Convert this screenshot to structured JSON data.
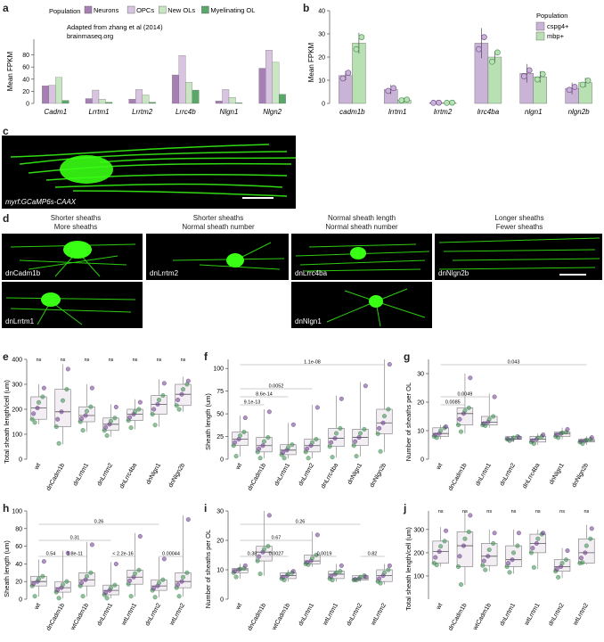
{
  "panels": {
    "a": {
      "letter": "a",
      "legend_title": "Population",
      "legend": [
        "Neurons",
        "OPCs",
        "New OLs",
        "Myelinating OL"
      ],
      "note_line1": "Adapted from zhang et al (2014)",
      "note_line2": "brainmaseq.org",
      "ylabel": "Mean FPKM"
    },
    "b": {
      "letter": "b",
      "legend_title": "Population",
      "legend": [
        "cspg4+",
        "mbp+"
      ],
      "ylabel": "Mean FPKM"
    },
    "c": {
      "letter": "c",
      "label": "myrf:GCaMP6s-CAAX"
    },
    "d": {
      "letter": "d",
      "headers": [
        [
          "Shorter sheaths",
          "More sheaths"
        ],
        [
          "Shorter sheaths",
          "Normal sheath number"
        ],
        [
          "Normal sheath length",
          "Normal sheath number"
        ],
        [
          "Longer sheaths",
          "Fewer sheaths"
        ]
      ],
      "labels": [
        "dnCadm1b",
        "dnLrrtm2",
        "dnLrrc4ba",
        "dnNlgn2b",
        "dnLrrtm1",
        "dnNlgn1"
      ]
    },
    "e": {
      "letter": "e",
      "ylabel": "Total sheath length/cell (um)"
    },
    "f": {
      "letter": "f",
      "ylabel": "Sheath length (um)"
    },
    "g": {
      "letter": "g",
      "ylabel": "Number of sheaths per OL"
    },
    "h": {
      "letter": "h",
      "ylabel": "Sheath length (um)"
    },
    "i": {
      "letter": "i",
      "ylabel": "Number of sheaths per OL"
    },
    "j": {
      "letter": "j",
      "ylabel": "Total sheath length/cell (um)"
    }
  },
  "colors": {
    "neurons": "#a67fb5",
    "opcs": "#d8c3e0",
    "newols": "#c9e6c3",
    "myelin": "#5aa76a",
    "cspg4": "#c9b3d6",
    "mbp": "#b9e0b3",
    "purple": "#6a3d8a",
    "green": "#3d8a4f",
    "box": "#f3eef3",
    "scope_green": "#39ff14"
  },
  "chart_data": [
    {
      "id": "a",
      "type": "bar",
      "categories": [
        "Cadm1",
        "Lrrtm1",
        "Lrrtm2",
        "Lrrc4b",
        "Nlgn1",
        "Nlgn2"
      ],
      "series": [
        {
          "name": "Neurons",
          "values": [
            29,
            8,
            7,
            47,
            4,
            58
          ]
        },
        {
          "name": "OPCs",
          "values": [
            30,
            22,
            23,
            79,
            23,
            88
          ]
        },
        {
          "name": "New OLs",
          "values": [
            43,
            7,
            14,
            35,
            10,
            68
          ]
        },
        {
          "name": "Myelinating OL",
          "values": [
            5,
            2,
            2,
            22,
            1,
            15
          ]
        }
      ],
      "ylabel": "Mean FPKM",
      "ylim": [
        0,
        100
      ],
      "yticks": [
        0,
        20,
        40,
        60,
        80
      ]
    },
    {
      "id": "b",
      "type": "bar",
      "categories": [
        "cadm1b",
        "lrrtm1",
        "lrrtm2",
        "lrrc4ba",
        "nlgn1",
        "nlgn2b"
      ],
      "series": [
        {
          "name": "cspg4+",
          "values": [
            12,
            6,
            0.3,
            26,
            13,
            6.5
          ],
          "err": [
            2,
            2,
            0.3,
            6.5,
            4,
            2.5
          ]
        },
        {
          "name": "mbp+",
          "values": [
            26,
            1.5,
            0.3,
            20,
            11.5,
            9
          ],
          "err": [
            4.5,
            1,
            0.2,
            2.5,
            2.5,
            2
          ]
        }
      ],
      "ylabel": "Mean FPKM",
      "ylim": [
        0,
        40
      ],
      "yticks": [
        0,
        10,
        20,
        30,
        40
      ]
    },
    {
      "id": "e",
      "type": "box",
      "categories": [
        "wt",
        "dnCadm1b",
        "dnLrrtm1",
        "dnLrrtm2",
        "dnLrrc4ba",
        "dnNlgn1",
        "dnNlgn2b"
      ],
      "boxes": [
        [
          140,
          160,
          205,
          250,
          300
        ],
        [
          60,
          130,
          190,
          280,
          380
        ],
        [
          110,
          150,
          175,
          210,
          300
        ],
        [
          90,
          115,
          140,
          165,
          220
        ],
        [
          120,
          155,
          180,
          200,
          240
        ],
        [
          130,
          180,
          220,
          255,
          320
        ],
        [
          190,
          215,
          260,
          300,
          330
        ]
      ],
      "annotations": [
        "ns",
        "ns",
        "ns",
        "ns",
        "ns",
        "ns",
        "ns"
      ],
      "ylim": [
        0,
        400
      ],
      "yticks": [
        0,
        100,
        200,
        300,
        400
      ]
    },
    {
      "id": "f",
      "type": "box",
      "categories": [
        "wt",
        "dnCadm1b",
        "dnLrrtm1",
        "dnLrrtm2",
        "dnLrrc4ba",
        "dnNlgn1",
        "dnNlgn2b"
      ],
      "boxes": [
        [
          3,
          15,
          22,
          30,
          48
        ],
        [
          1,
          8,
          15,
          24,
          55
        ],
        [
          1,
          5,
          10,
          16,
          40
        ],
        [
          1,
          8,
          15,
          22,
          60
        ],
        [
          2,
          14,
          23,
          34,
          70
        ],
        [
          3,
          15,
          24,
          33,
          85
        ],
        [
          8,
          28,
          40,
          55,
          110
        ]
      ],
      "pvals": [
        [
          "9.1e-13",
          0,
          1
        ],
        [
          "8.6e-14",
          0,
          2
        ],
        [
          "0.0052",
          0,
          3
        ],
        [
          "1.1e-08",
          0,
          6
        ]
      ],
      "ylim": [
        0,
        110
      ],
      "yticks": [
        0,
        25,
        50,
        75,
        100
      ]
    },
    {
      "id": "g",
      "type": "box",
      "categories": [
        "wt",
        "dnCadm1b",
        "dnLrrtm1",
        "dnLrrtm2",
        "dnLrrc4ba",
        "dnNlgn1",
        "dnNlgn2b"
      ],
      "boxes": [
        [
          7,
          8,
          9,
          11,
          12
        ],
        [
          9,
          12,
          16,
          18,
          30
        ],
        [
          11,
          12,
          13,
          15,
          23
        ],
        [
          6,
          7,
          7,
          8,
          8
        ],
        [
          5,
          6,
          7,
          8,
          9
        ],
        [
          7,
          8,
          9,
          9.5,
          11
        ],
        [
          5,
          6,
          6.5,
          7,
          8
        ]
      ],
      "pvals": [
        [
          "0.0085",
          0,
          1
        ],
        [
          "0.0049",
          0,
          2
        ],
        [
          "0.043",
          0,
          6
        ]
      ],
      "ylim": [
        0,
        35
      ],
      "yticks": [
        0,
        10,
        20,
        30
      ]
    },
    {
      "id": "h",
      "type": "box",
      "categories": [
        "wt",
        "dnCadm1b",
        "wtCadm1b",
        "dnLrrtm1",
        "wtLrrtm1",
        "dnLrrtm2",
        "wtLrrtm2"
      ],
      "boxes": [
        [
          3,
          15,
          20,
          26,
          45
        ],
        [
          1,
          8,
          13,
          20,
          55
        ],
        [
          3,
          15,
          22,
          30,
          65
        ],
        [
          1,
          5,
          10,
          16,
          42
        ],
        [
          3,
          17,
          25,
          33,
          75
        ],
        [
          2,
          10,
          15,
          22,
          48
        ],
        [
          3,
          13,
          20,
          30,
          95
        ]
      ],
      "pvals": [
        [
          "0.54",
          0,
          1
        ],
        [
          "1.8e-11",
          1,
          2
        ],
        [
          "0.31",
          0,
          3
        ],
        [
          "< 2.2e-16",
          3,
          4
        ],
        [
          "0.26",
          0,
          5
        ],
        [
          "0.00044",
          5,
          6
        ]
      ],
      "ylim": [
        0,
        100
      ],
      "yticks": [
        0,
        20,
        40,
        60,
        80,
        100
      ]
    },
    {
      "id": "i",
      "type": "box",
      "categories": [
        "wt",
        "dnCadm1b",
        "wtCadm1b",
        "dnLrrtm1",
        "wtLrrtm1",
        "dnLrrtm2",
        "wtLrrtm2"
      ],
      "boxes": [
        [
          7,
          9,
          10,
          10.5,
          12
        ],
        [
          8,
          13,
          16,
          18,
          30
        ],
        [
          6,
          7,
          8,
          9,
          10
        ],
        [
          11,
          12,
          13,
          15,
          23
        ],
        [
          6,
          7,
          8.5,
          9.5,
          12
        ],
        [
          6,
          6.5,
          7,
          8,
          8
        ],
        [
          5,
          6,
          8,
          10,
          12
        ]
      ],
      "pvals": [
        [
          "0.38",
          0,
          1
        ],
        [
          "0.0027",
          1,
          2
        ],
        [
          "0.67",
          0,
          3
        ],
        [
          "0.0019",
          3,
          4
        ],
        [
          "0.26",
          0,
          5
        ],
        [
          "0.82",
          5,
          6
        ]
      ],
      "ylim": [
        0,
        30
      ],
      "yticks": [
        0,
        10,
        20,
        30
      ]
    },
    {
      "id": "j",
      "type": "box",
      "categories": [
        "wt",
        "dnCadm1b",
        "wtCadm1b",
        "dnLrrtm1",
        "wtLrrtm1",
        "dnLrrtm2",
        "wtLrrtm2"
      ],
      "boxes": [
        [
          140,
          155,
          205,
          250,
          310
        ],
        [
          60,
          140,
          230,
          290,
          380
        ],
        [
          120,
          145,
          185,
          240,
          300
        ],
        [
          110,
          140,
          170,
          230,
          300
        ],
        [
          130,
          200,
          240,
          280,
          300
        ],
        [
          90,
          120,
          140,
          170,
          220
        ],
        [
          150,
          155,
          200,
          260,
          320
        ]
      ],
      "annotations": [
        "ns",
        "ns",
        "ns",
        "ns",
        "ns",
        "ns",
        "ns"
      ],
      "ylim": [
        0,
        380
      ],
      "yticks": [
        100,
        200,
        300
      ]
    }
  ]
}
